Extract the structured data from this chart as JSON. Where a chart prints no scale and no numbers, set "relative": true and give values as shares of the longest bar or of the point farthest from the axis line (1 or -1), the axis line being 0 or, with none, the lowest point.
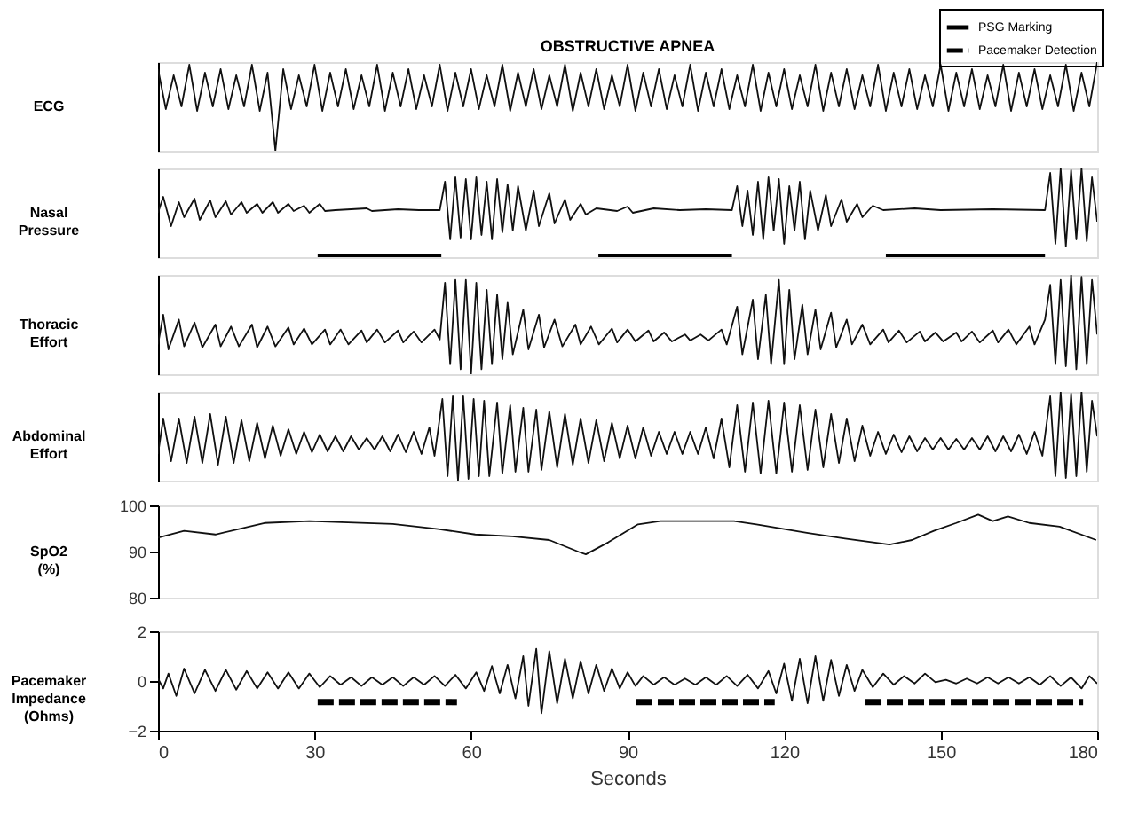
{
  "chart_data": [
    {
      "type": "line",
      "title": "OBSTRUCTIVE APNEA",
      "ylabel": "ECG",
      "relative": true,
      "xlim": [
        0,
        180
      ],
      "tick_labels": false,
      "series": [
        {
          "color": "#111111",
          "x": [
            0,
            1.5,
            3,
            4.5,
            6,
            7.5,
            9,
            10.5,
            12,
            13.5,
            15,
            16.5,
            18,
            19.5,
            21,
            22.5,
            24,
            25.5,
            27,
            28.5,
            30,
            31.5,
            33,
            34.5,
            36,
            37.5,
            39,
            40.5,
            42,
            43.5,
            45,
            46.5,
            48,
            49.5,
            51,
            52.5,
            54,
            55.5,
            57,
            58.5,
            60,
            61.5,
            63,
            64.5,
            66,
            67.5,
            69,
            70.5,
            72,
            73.5,
            75,
            76.5,
            78,
            79.5,
            81,
            82.5,
            84,
            85.5,
            87,
            88.5,
            90,
            91.5,
            93,
            94.5,
            96,
            97.5,
            99,
            100.5,
            102,
            103.5,
            105,
            106.5,
            108,
            109.5,
            111,
            112.5,
            114,
            115.5,
            117,
            118.5,
            120,
            121.5,
            123,
            124.5,
            126,
            127.5,
            129,
            130.5,
            132,
            133.5,
            135,
            136.5,
            138,
            139.5,
            141,
            142.5,
            144,
            145.5,
            147,
            148.5,
            150,
            151.5,
            153,
            154.5,
            156,
            157.5,
            159,
            160.5,
            162,
            163.5,
            165,
            166.5,
            168,
            169.5,
            171,
            172.5,
            174,
            175.5,
            177,
            178.5,
            180
          ],
          "values": [
            0.92,
            0.47,
            0.85,
            0.5,
            0.97,
            0.45,
            0.88,
            0.5,
            0.92,
            0.47,
            0.85,
            0.5,
            0.97,
            0.45,
            0.88,
            0,
            0.92,
            0.47,
            0.85,
            0.5,
            0.97,
            0.45,
            0.88,
            0.5,
            0.92,
            0.47,
            0.85,
            0.5,
            0.97,
            0.45,
            0.88,
            0.5,
            0.92,
            0.47,
            0.85,
            0.5,
            0.97,
            0.45,
            0.88,
            0.5,
            0.92,
            0.47,
            0.85,
            0.5,
            0.97,
            0.45,
            0.88,
            0.5,
            0.92,
            0.47,
            0.85,
            0.5,
            0.97,
            0.45,
            0.88,
            0.5,
            0.92,
            0.47,
            0.85,
            0.5,
            0.97,
            0.45,
            0.88,
            0.5,
            0.92,
            0.47,
            0.85,
            0.5,
            0.97,
            0.45,
            0.88,
            0.5,
            0.92,
            0.47,
            0.85,
            0.5,
            0.97,
            0.45,
            0.88,
            0.5,
            0.92,
            0.47,
            0.85,
            0.5,
            0.97,
            0.45,
            0.88,
            0.5,
            0.92,
            0.47,
            0.85,
            0.5,
            0.97,
            0.45,
            0.88,
            0.5,
            0.92,
            0.47,
            0.85,
            0.5,
            0.97,
            0.45,
            0.88,
            0.5,
            0.92,
            0.47,
            0.85,
            0.5,
            0.97,
            0.45,
            0.88,
            0.5,
            0.92,
            0.47,
            0.85,
            0.5,
            0.97,
            0.45,
            0.88,
            0.5,
            1.0
          ]
        }
      ]
    },
    {
      "type": "line",
      "ylabel": "Nasal Pressure",
      "relative": true,
      "xlim": [
        0,
        180
      ],
      "tick_labels": false,
      "legend": "top right",
      "series": [
        {
          "color": "#111111",
          "x": [
            0,
            1,
            2.5,
            4,
            5,
            7,
            8,
            10,
            11,
            13,
            14,
            16,
            17,
            19,
            20,
            22,
            23,
            25,
            26,
            28,
            29,
            31,
            32,
            34,
            40,
            41,
            46,
            50,
            54,
            55,
            56,
            57,
            58,
            59,
            60,
            61,
            62,
            63,
            64,
            65,
            66,
            67,
            68,
            69,
            70.5,
            72,
            73,
            75,
            76,
            78,
            79,
            81,
            82,
            84,
            88,
            90,
            91,
            95,
            100,
            105,
            110,
            111,
            112,
            113,
            114,
            115,
            116,
            117,
            118,
            119,
            120,
            121,
            122,
            123,
            124,
            125,
            126.5,
            128,
            129,
            131,
            132,
            134,
            135,
            137,
            139,
            145,
            150,
            160,
            170,
            171,
            172,
            173,
            174,
            175,
            176,
            177,
            178,
            179,
            180
          ],
          "values": [
            0.5,
            0.68,
            0.35,
            0.62,
            0.45,
            0.66,
            0.42,
            0.64,
            0.45,
            0.63,
            0.48,
            0.62,
            0.5,
            0.6,
            0.5,
            0.62,
            0.5,
            0.6,
            0.52,
            0.58,
            0.5,
            0.6,
            0.52,
            0.53,
            0.55,
            0.52,
            0.54,
            0.53,
            0.53,
            0.85,
            0.2,
            0.9,
            0.22,
            0.88,
            0.2,
            0.9,
            0.25,
            0.85,
            0.2,
            0.88,
            0.28,
            0.82,
            0.3,
            0.8,
            0.3,
            0.75,
            0.35,
            0.72,
            0.38,
            0.65,
            0.42,
            0.6,
            0.48,
            0.55,
            0.52,
            0.57,
            0.5,
            0.55,
            0.53,
            0.54,
            0.53,
            0.8,
            0.35,
            0.75,
            0.25,
            0.85,
            0.2,
            0.9,
            0.3,
            0.88,
            0.15,
            0.8,
            0.3,
            0.85,
            0.2,
            0.75,
            0.3,
            0.7,
            0.35,
            0.65,
            0.4,
            0.6,
            0.45,
            0.58,
            0.53,
            0.55,
            0.53,
            0.54,
            0.53,
            0.95,
            0.15,
            1.0,
            0.12,
            0.98,
            0.2,
            1.0,
            0.18,
            0.9,
            0.4
          ]
        },
        {
          "name": "PSG Marking",
          "color": "#000000",
          "line_style": "solid",
          "x": [
            30.6,
            54.3
          ],
          "values": [
            0,
            0
          ]
        },
        {
          "color": "#000000",
          "line_style": "solid",
          "x": [
            84.4,
            110
          ],
          "values": [
            0,
            0
          ]
        },
        {
          "color": "#000000",
          "line_style": "solid",
          "x": [
            139.5,
            170
          ],
          "values": [
            0,
            0
          ]
        }
      ]
    },
    {
      "type": "line",
      "ylabel": "Thoracic Effort",
      "relative": true,
      "xlim": [
        0,
        180
      ],
      "tick_labels": false,
      "series": [
        {
          "color": "#111111",
          "x": [
            0,
            1,
            2,
            4,
            5,
            7,
            8.5,
            11,
            12,
            14,
            15.5,
            18,
            19,
            21,
            22.5,
            25,
            26,
            28,
            29.5,
            32,
            33,
            35,
            36.5,
            39,
            40,
            42,
            43.5,
            46,
            47,
            49,
            50.5,
            53,
            54,
            55,
            56,
            57,
            58,
            59,
            60,
            61,
            62,
            63,
            64,
            65,
            66,
            67,
            68,
            70,
            71,
            73,
            74,
            76,
            77.5,
            80,
            81,
            83,
            84.5,
            87,
            88,
            90,
            91.5,
            94,
            95,
            97,
            98.5,
            101,
            102,
            104,
            105.5,
            108,
            109,
            111,
            112,
            114,
            115,
            116.5,
            117.5,
            119,
            120,
            121,
            122,
            123.5,
            124.5,
            126,
            127,
            129,
            130,
            132,
            133,
            135,
            136.5,
            139,
            140,
            142,
            143.5,
            146,
            147,
            149,
            150.5,
            153,
            154,
            156,
            157.5,
            160,
            161,
            163,
            164.5,
            167,
            168,
            170,
            171,
            172,
            173,
            174,
            175,
            176,
            177,
            178,
            179,
            180
          ],
          "values": [
            0.3,
            0.6,
            0.25,
            0.55,
            0.28,
            0.52,
            0.27,
            0.5,
            0.28,
            0.48,
            0.28,
            0.5,
            0.27,
            0.48,
            0.28,
            0.47,
            0.3,
            0.46,
            0.3,
            0.45,
            0.3,
            0.45,
            0.3,
            0.44,
            0.32,
            0.45,
            0.32,
            0.44,
            0.32,
            0.43,
            0.32,
            0.45,
            0.35,
            0.92,
            0.1,
            0.95,
            0.05,
            0.95,
            0,
            0.92,
            0.05,
            0.85,
            0.1,
            0.8,
            0.15,
            0.72,
            0.2,
            0.65,
            0.25,
            0.6,
            0.27,
            0.55,
            0.28,
            0.5,
            0.3,
            0.48,
            0.3,
            0.46,
            0.32,
            0.45,
            0.33,
            0.44,
            0.33,
            0.42,
            0.33,
            0.4,
            0.34,
            0.4,
            0.34,
            0.45,
            0.3,
            0.68,
            0.2,
            0.75,
            0.15,
            0.8,
            0.1,
            0.95,
            0.1,
            0.85,
            0.15,
            0.7,
            0.2,
            0.65,
            0.25,
            0.62,
            0.27,
            0.55,
            0.3,
            0.5,
            0.3,
            0.45,
            0.32,
            0.44,
            0.32,
            0.43,
            0.33,
            0.42,
            0.33,
            0.42,
            0.33,
            0.43,
            0.32,
            0.44,
            0.32,
            0.45,
            0.3,
            0.48,
            0.3,
            0.55,
            0.9,
            0.1,
            0.95,
            0.08,
            1.0,
            0.05,
            0.98,
            0.1,
            0.95,
            0.4
          ]
        }
      ]
    },
    {
      "type": "line",
      "ylabel": "Abdominal Effort",
      "relative": true,
      "xlim": [
        0,
        180
      ],
      "tick_labels": false,
      "series": [
        {
          "color": "#111111",
          "x": [
            0,
            1,
            2.5,
            4,
            5.5,
            7,
            8.5,
            10,
            11.5,
            13,
            14.5,
            16,
            17.5,
            19,
            20.5,
            22,
            23.5,
            25,
            26.5,
            28,
            29.5,
            31,
            32.5,
            34,
            35.5,
            37,
            38.5,
            40,
            41.5,
            43,
            44.5,
            46,
            47.5,
            49,
            50.5,
            52,
            53,
            54.5,
            55.5,
            56.5,
            57.5,
            58.5,
            59.5,
            60.5,
            61.5,
            62.5,
            63.5,
            65,
            66,
            67.5,
            68.5,
            70,
            71,
            72.5,
            73.5,
            75,
            76.5,
            78,
            79.5,
            81,
            82.5,
            84,
            85.5,
            87,
            88.5,
            90,
            91.5,
            93,
            94.5,
            96,
            97.5,
            99,
            100.5,
            102,
            103.5,
            105,
            106.5,
            108,
            109.5,
            111,
            112.5,
            114,
            115.5,
            117,
            118.5,
            120,
            121.5,
            123,
            124.5,
            126,
            127.5,
            129,
            130.5,
            132,
            133.5,
            135,
            136.5,
            138,
            139.5,
            141,
            142.5,
            144,
            145.5,
            147,
            148.5,
            150,
            151.5,
            153,
            154.5,
            156,
            157.5,
            159,
            160.5,
            162,
            163.5,
            165,
            166.5,
            168,
            169.5,
            171,
            172,
            173,
            174,
            175,
            176,
            177,
            178,
            179,
            180
          ],
          "values": [
            0.3,
            0.7,
            0.22,
            0.7,
            0.2,
            0.72,
            0.2,
            0.75,
            0.18,
            0.72,
            0.2,
            0.68,
            0.22,
            0.65,
            0.25,
            0.62,
            0.28,
            0.58,
            0.3,
            0.55,
            0.32,
            0.52,
            0.33,
            0.5,
            0.33,
            0.5,
            0.35,
            0.48,
            0.35,
            0.5,
            0.33,
            0.52,
            0.32,
            0.55,
            0.3,
            0.6,
            0.28,
            0.92,
            0.05,
            0.95,
            0,
            0.95,
            0.02,
            0.92,
            0.05,
            0.9,
            0.05,
            0.88,
            0.08,
            0.85,
            0.1,
            0.82,
            0.1,
            0.8,
            0.12,
            0.78,
            0.15,
            0.75,
            0.18,
            0.7,
            0.2,
            0.68,
            0.22,
            0.65,
            0.25,
            0.62,
            0.25,
            0.6,
            0.28,
            0.55,
            0.3,
            0.55,
            0.3,
            0.55,
            0.3,
            0.6,
            0.25,
            0.7,
            0.15,
            0.85,
            0.1,
            0.88,
            0.08,
            0.9,
            0.08,
            0.88,
            0.1,
            0.85,
            0.12,
            0.8,
            0.15,
            0.75,
            0.2,
            0.7,
            0.22,
            0.62,
            0.28,
            0.55,
            0.3,
            0.52,
            0.32,
            0.5,
            0.33,
            0.48,
            0.35,
            0.48,
            0.35,
            0.47,
            0.35,
            0.48,
            0.35,
            0.5,
            0.33,
            0.5,
            0.33,
            0.52,
            0.3,
            0.55,
            0.28,
            0.95,
            0.05,
            1.0,
            0.03,
            0.98,
            0.05,
            1.0,
            0.1,
            0.9,
            0.5
          ]
        }
      ]
    },
    {
      "type": "line",
      "ylabel": "SpO2 (%)",
      "xlim": [
        0,
        180
      ],
      "ylim": [
        80,
        100
      ],
      "yticks": [
        80,
        90,
        100
      ],
      "tick_labels": "y",
      "series": [
        {
          "color": "#111111",
          "x": [
            0,
            5,
            11,
            20.4,
            29,
            45,
            53.7,
            60.8,
            67.9,
            75,
            80.7,
            82,
            86.3,
            92,
            96.3,
            110.4,
            114.7,
            124.6,
            131.7,
            140.2,
            144.5,
            148.7,
            153,
            157.2,
            160,
            162.9,
            167,
            172.8,
            179.8
          ],
          "values": [
            93,
            94.5,
            93.7,
            96.2,
            96.6,
            96,
            94.9,
            93.7,
            93.3,
            92.5,
            89.9,
            89.4,
            92,
            95.9,
            96.6,
            96.6,
            95.9,
            94,
            92.8,
            91.5,
            92.5,
            94.5,
            96.2,
            98,
            96.6,
            97.6,
            96.2,
            95.4,
            92.5
          ]
        }
      ]
    },
    {
      "type": "line",
      "ylabel": "Pacemaker Impedance (Ohms)",
      "xlabel": "Seconds",
      "xlim": [
        0,
        180
      ],
      "xticks": [
        0,
        30,
        60,
        90,
        120,
        150,
        180
      ],
      "ylim": [
        -2,
        2
      ],
      "yticks": [
        -2,
        0,
        2
      ],
      "legend": "top right",
      "series": [
        {
          "color": "#111111",
          "x": [
            0,
            1,
            2,
            3.5,
            5,
            7,
            9,
            11,
            13,
            15,
            17,
            19,
            21,
            23,
            25,
            27,
            29,
            31,
            33,
            35,
            37,
            39,
            41,
            43,
            45,
            47,
            49,
            51,
            53,
            55,
            57,
            59,
            61,
            62.5,
            64,
            65.5,
            67,
            68.5,
            70,
            71,
            72.5,
            73.5,
            75,
            76.5,
            78,
            79.5,
            81,
            82.5,
            84,
            85.5,
            87,
            88.5,
            90,
            91.5,
            93,
            95,
            97,
            99,
            101,
            103,
            105,
            107,
            109,
            111,
            113,
            115,
            117,
            118.5,
            120,
            121.5,
            123,
            124.5,
            126,
            127.5,
            129,
            130.5,
            132,
            133.5,
            135,
            137,
            139,
            141,
            143,
            145,
            147,
            149,
            151,
            153,
            155,
            157,
            159,
            161,
            163,
            165,
            167,
            169,
            171,
            173,
            175,
            177,
            178.5,
            180
          ],
          "values": [
            0.1,
            -0.3,
            0.3,
            -0.6,
            0.5,
            -0.5,
            0.45,
            -0.4,
            0.45,
            -0.35,
            0.4,
            -0.3,
            0.35,
            -0.3,
            0.35,
            -0.3,
            0.3,
            -0.25,
            0.2,
            -0.15,
            0.15,
            -0.2,
            0.15,
            -0.15,
            0.15,
            -0.2,
            0.15,
            -0.15,
            0.2,
            -0.2,
            0.25,
            -0.3,
            0.35,
            -0.4,
            0.6,
            -0.5,
            0.65,
            -0.7,
            1.0,
            -1.0,
            1.3,
            -1.3,
            1.2,
            -0.9,
            0.9,
            -0.7,
            0.8,
            -0.5,
            0.65,
            -0.4,
            0.5,
            -0.3,
            0.35,
            -0.2,
            0.2,
            -0.15,
            0.15,
            -0.15,
            0.1,
            -0.15,
            0.15,
            -0.15,
            0.2,
            -0.2,
            0.25,
            -0.3,
            0.4,
            -0.5,
            0.7,
            -0.8,
            0.9,
            -0.9,
            1.0,
            -0.8,
            0.85,
            -0.6,
            0.65,
            -0.4,
            0.45,
            -0.25,
            0.3,
            -0.15,
            0.2,
            -0.1,
            0.3,
            -0.05,
            0.05,
            -0.1,
            0.1,
            -0.1,
            0.15,
            -0.1,
            0.15,
            -0.1,
            0.15,
            -0.15,
            0.2,
            -0.2,
            0.15,
            -0.3,
            0.2,
            -0.1
          ]
        },
        {
          "name": "Pacemaker Detection",
          "color": "#000000",
          "line_style": "dashed",
          "x": [
            30.6,
            57.3
          ],
          "values": [
            -0.85,
            -0.85
          ]
        },
        {
          "color": "#000000",
          "line_style": "dashed",
          "x": [
            91.7,
            118.2
          ],
          "values": [
            -0.85,
            -0.85
          ]
        },
        {
          "color": "#000000",
          "line_style": "dashed",
          "x": [
            135.6,
            177.3
          ],
          "values": [
            -0.85,
            -0.85
          ]
        }
      ]
    }
  ]
}
